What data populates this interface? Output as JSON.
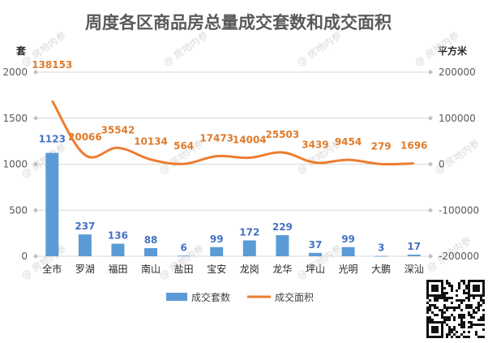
{
  "chart_data": {
    "type": "bar",
    "title": "周度各区商品房总量成交套数和成交面积",
    "categories": [
      "全市",
      "罗湖",
      "福田",
      "南山",
      "盐田",
      "宝安",
      "龙岗",
      "龙华",
      "坪山",
      "光明",
      "大鹏",
      "深汕"
    ],
    "series": [
      {
        "name": "成交套数",
        "type": "bar",
        "axis": "left",
        "values": [
          1123,
          237,
          136,
          88,
          6,
          99,
          172,
          229,
          37,
          99,
          3,
          17
        ],
        "color": "#5b9bd5"
      },
      {
        "name": "成交面积",
        "type": "line",
        "axis": "right",
        "values": [
          138153,
          20066,
          35542,
          10134,
          564,
          17473,
          14004,
          25503,
          3439,
          9454,
          279,
          1696
        ],
        "color": "#ed7d31"
      }
    ],
    "y_left": {
      "unit": "套",
      "ylim": [
        0,
        2000
      ],
      "ticks": [
        "0",
        "500",
        "1000",
        "1500",
        "2000"
      ]
    },
    "y_right": {
      "unit": "平方米",
      "ylim": [
        -200000,
        200000
      ],
      "ticks": [
        "-200000",
        "-100000",
        "0",
        "100000",
        "200000"
      ]
    },
    "legend_position": "bottom",
    "grid": true,
    "watermark": "房地内参"
  }
}
